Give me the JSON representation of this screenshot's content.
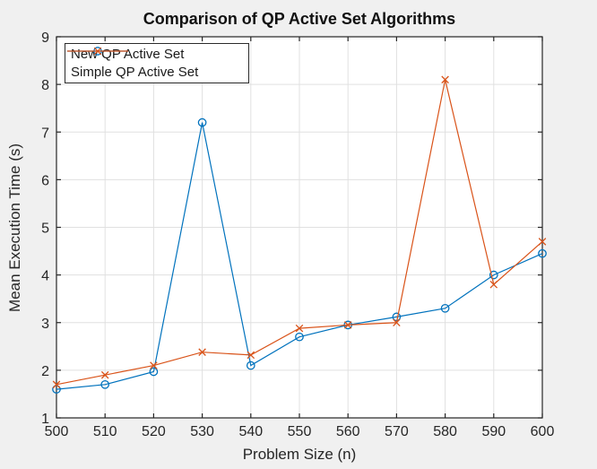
{
  "figure": {
    "background": "#f0f0f0",
    "plot_background": "#ffffff",
    "axis_color": "#262626",
    "grid_color": "#e0e0e0"
  },
  "chart_data": {
    "type": "line",
    "title": "Comparison of QP Active Set Algorithms",
    "xlabel": "Problem Size (n)",
    "ylabel": "Mean Execution Time (s)",
    "xlim": [
      500,
      600
    ],
    "ylim": [
      1,
      9
    ],
    "xticks": [
      500,
      510,
      520,
      530,
      540,
      550,
      560,
      570,
      580,
      590,
      600
    ],
    "yticks": [
      1,
      2,
      3,
      4,
      5,
      6,
      7,
      8,
      9
    ],
    "grid": true,
    "legend_position": "northwest",
    "x": [
      500,
      510,
      520,
      530,
      540,
      550,
      560,
      570,
      580,
      590,
      600
    ],
    "series": [
      {
        "name": "New QP Active Set",
        "color": "#0072BD",
        "marker": "circle",
        "values": [
          1.6,
          1.7,
          1.97,
          7.2,
          2.1,
          2.7,
          2.95,
          3.12,
          3.3,
          4.0,
          4.45
        ]
      },
      {
        "name": "Simple QP Active Set",
        "color": "#D95319",
        "marker": "x",
        "values": [
          1.7,
          1.9,
          2.1,
          2.38,
          2.32,
          2.88,
          2.95,
          3.0,
          8.1,
          3.8,
          4.7
        ]
      }
    ]
  }
}
